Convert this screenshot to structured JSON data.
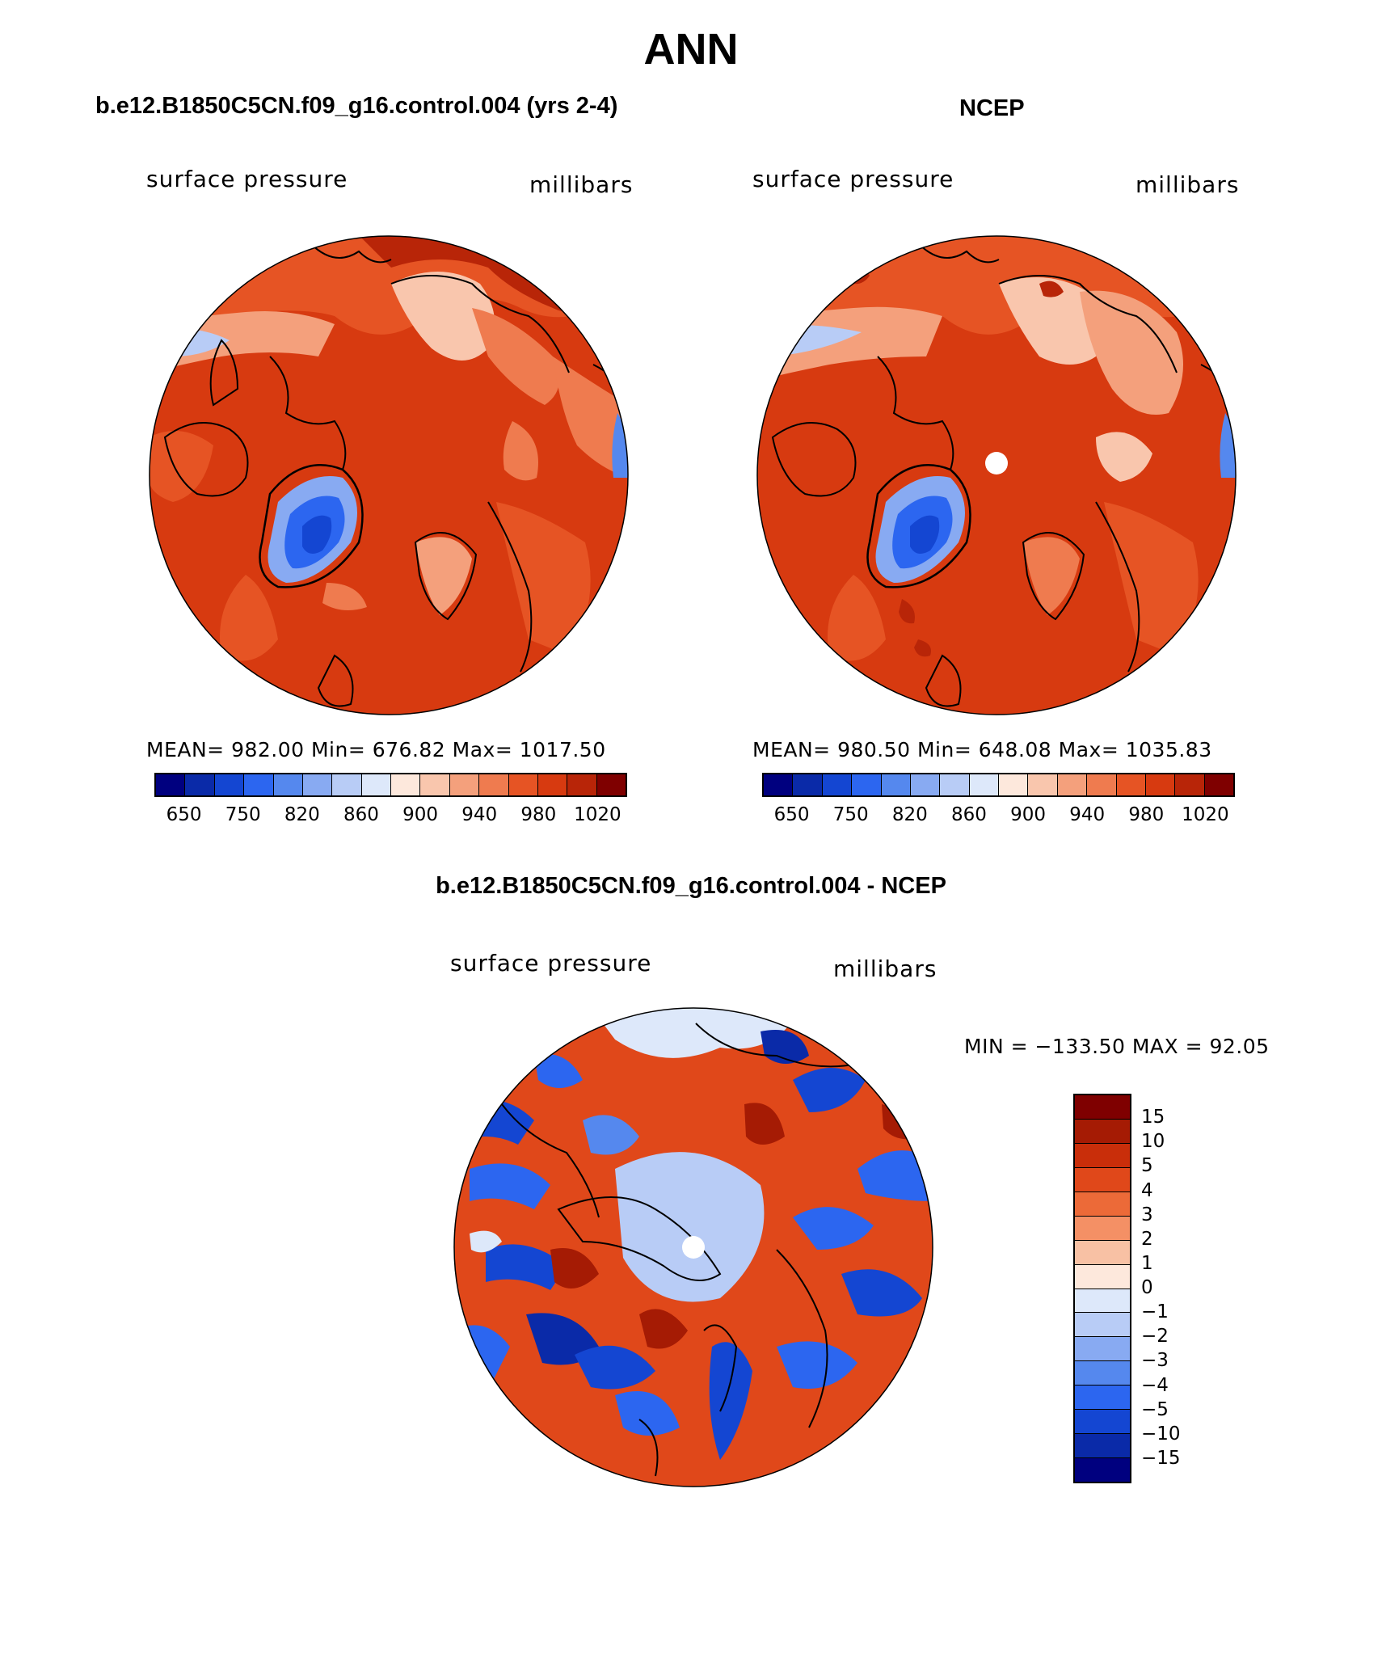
{
  "page": {
    "title": "ANN",
    "case_title": "b.e12.B1850C5CN.f09_g16.control.004 (yrs 2-4)",
    "obs_title": "NCEP",
    "diff_title": "b.e12.B1850C5CN.f09_g16.control.004 - NCEP"
  },
  "panels": {
    "model": {
      "variable": "surface pressure",
      "units": "millibars",
      "stats": "MEAN= 982.00   Min= 676.82   Max= 1017.50",
      "ticks": [
        "650",
        "750",
        "820",
        "860",
        "900",
        "940",
        "980",
        "1020"
      ]
    },
    "obs": {
      "variable": "surface pressure",
      "units": "millibars",
      "stats": "MEAN= 980.50   Min= 648.08   Max= 1035.83",
      "ticks": [
        "650",
        "750",
        "820",
        "860",
        "900",
        "940",
        "980",
        "1020"
      ]
    },
    "diff": {
      "variable": "surface pressure",
      "units": "millibars",
      "stats": "MIN = −133.50 MAX =   92.05",
      "ticks": [
        "15",
        "10",
        "5",
        "4",
        "3",
        "2",
        "1",
        "0",
        "−1",
        "−2",
        "−3",
        "−4",
        "−5",
        "−10",
        "−15"
      ]
    }
  },
  "colors": {
    "abs_scale": [
      "#00007f",
      "#0a2aa8",
      "#1446d2",
      "#2c66f0",
      "#5588ee",
      "#88aaf2",
      "#b8ccf6",
      "#dde8fa",
      "#fde8dc",
      "#f9c6ad",
      "#f4a07c",
      "#ef7b4f",
      "#e65424",
      "#d73a10",
      "#b82508",
      "#7f0000"
    ],
    "diff_scale": [
      "#7f0000",
      "#a51b04",
      "#c92e0a",
      "#e0481a",
      "#ec6a38",
      "#f49065",
      "#f8c1a4",
      "#fde8dc",
      "#dde8fa",
      "#b8ccf6",
      "#88aaf2",
      "#5588ee",
      "#2c66f0",
      "#1446d2",
      "#0a2aa8",
      "#00007f"
    ]
  }
}
